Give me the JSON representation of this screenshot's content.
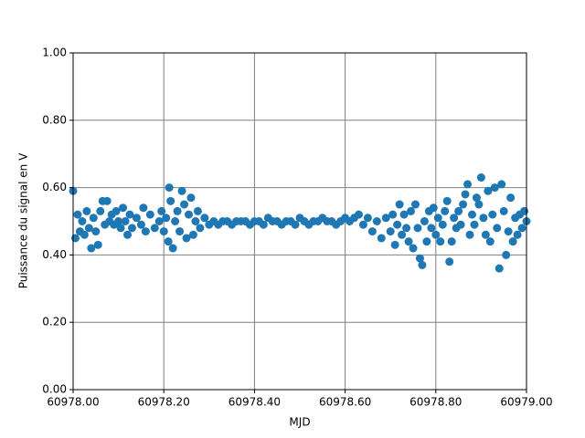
{
  "chart_data": {
    "type": "scatter",
    "xlabel": "MJD",
    "ylabel": "Puissance du signal en V",
    "color": "#1f77b4",
    "grid": true,
    "xlim": [
      60978.0,
      60979.0
    ],
    "xticks": [
      {
        "value": 60978.0,
        "label": "60978.00"
      },
      {
        "value": 60978.2,
        "label": "60978.20"
      },
      {
        "value": 60978.4,
        "label": "60978.40"
      },
      {
        "value": 60978.6,
        "label": "60978.60"
      },
      {
        "value": 60978.8,
        "label": "60978.80"
      },
      {
        "value": 60979.0,
        "label": "60979.00"
      }
    ],
    "ylim": [
      0,
      1
    ],
    "yticks": [
      {
        "value": 0,
        "label": "0.00"
      },
      {
        "value": 0.2,
        "label": "0.20"
      },
      {
        "value": 0.4,
        "label": "0.40"
      },
      {
        "value": 0.6,
        "label": "0.60"
      },
      {
        "value": 0.8,
        "label": "0.80"
      },
      {
        "value": 1,
        "label": "1.00"
      }
    ],
    "x": [
      60978.0,
      60978.005,
      60978.01,
      60978.015,
      60978.02,
      60978.025,
      60978.03,
      60978.035,
      60978.04,
      60978.045,
      60978.05,
      60978.055,
      60978.06,
      60978.065,
      60978.07,
      60978.075,
      60978.08,
      60978.085,
      60978.09,
      60978.095,
      60978.1,
      60978.105,
      60978.11,
      60978.115,
      60978.12,
      60978.125,
      60978.13,
      60978.14,
      60978.15,
      60978.155,
      60978.16,
      60978.17,
      60978.18,
      60978.19,
      60978.195,
      60978.2,
      60978.205,
      60978.21,
      60978.212,
      60978.215,
      60978.22,
      60978.225,
      60978.23,
      60978.235,
      60978.24,
      60978.245,
      60978.25,
      60978.255,
      60978.26,
      60978.265,
      60978.27,
      60978.275,
      60978.28,
      60978.29,
      60978.3,
      60978.31,
      60978.32,
      60978.33,
      60978.34,
      60978.35,
      60978.36,
      60978.37,
      60978.38,
      60978.39,
      60978.4,
      60978.41,
      60978.42,
      60978.43,
      60978.44,
      60978.45,
      60978.46,
      60978.47,
      60978.48,
      60978.49,
      60978.5,
      60978.51,
      60978.52,
      60978.53,
      60978.54,
      60978.55,
      60978.56,
      60978.57,
      60978.58,
      60978.59,
      60978.6,
      60978.61,
      60978.62,
      60978.63,
      60978.64,
      60978.65,
      60978.66,
      60978.67,
      60978.68,
      60978.69,
      60978.7,
      60978.705,
      60978.71,
      60978.715,
      60978.72,
      60978.725,
      60978.73,
      60978.735,
      60978.74,
      60978.745,
      60978.75,
      60978.755,
      60978.76,
      60978.765,
      60978.77,
      60978.775,
      60978.78,
      60978.785,
      60978.79,
      60978.795,
      60978.8,
      60978.805,
      60978.81,
      60978.815,
      60978.82,
      60978.825,
      60978.83,
      60978.835,
      60978.84,
      60978.845,
      60978.85,
      60978.855,
      60978.86,
      60978.865,
      60978.87,
      60978.875,
      60978.88,
      60978.885,
      60978.89,
      60978.895,
      60978.9,
      60978.905,
      60978.91,
      60978.915,
      60978.92,
      60978.925,
      60978.93,
      60978.935,
      60978.94,
      60978.945,
      60978.95,
      60978.955,
      60978.96,
      60978.965,
      60978.97,
      60978.975,
      60978.98,
      60978.985,
      60978.99,
      60978.995,
      60979.0
    ],
    "values": [
      0.59,
      0.45,
      0.52,
      0.47,
      0.5,
      0.46,
      0.53,
      0.48,
      0.42,
      0.51,
      0.47,
      0.43,
      0.53,
      0.56,
      0.49,
      0.56,
      0.5,
      0.52,
      0.49,
      0.53,
      0.5,
      0.48,
      0.54,
      0.5,
      0.46,
      0.52,
      0.48,
      0.51,
      0.49,
      0.54,
      0.47,
      0.52,
      0.48,
      0.5,
      0.53,
      0.47,
      0.51,
      0.44,
      0.6,
      0.56,
      0.42,
      0.5,
      0.53,
      0.47,
      0.59,
      0.55,
      0.45,
      0.52,
      0.57,
      0.46,
      0.5,
      0.53,
      0.48,
      0.51,
      0.49,
      0.5,
      0.49,
      0.5,
      0.5,
      0.49,
      0.5,
      0.5,
      0.5,
      0.49,
      0.5,
      0.5,
      0.49,
      0.51,
      0.5,
      0.5,
      0.49,
      0.5,
      0.5,
      0.49,
      0.51,
      0.5,
      0.49,
      0.5,
      0.5,
      0.51,
      0.5,
      0.5,
      0.49,
      0.5,
      0.51,
      0.5,
      0.51,
      0.52,
      0.49,
      0.51,
      0.47,
      0.5,
      0.45,
      0.51,
      0.47,
      0.52,
      0.43,
      0.49,
      0.55,
      0.46,
      0.52,
      0.48,
      0.44,
      0.53,
      0.42,
      0.55,
      0.48,
      0.39,
      0.37,
      0.5,
      0.44,
      0.53,
      0.48,
      0.54,
      0.46,
      0.51,
      0.44,
      0.49,
      0.53,
      0.56,
      0.38,
      0.44,
      0.51,
      0.48,
      0.53,
      0.49,
      0.55,
      0.58,
      0.61,
      0.46,
      0.52,
      0.49,
      0.57,
      0.55,
      0.63,
      0.51,
      0.46,
      0.59,
      0.44,
      0.52,
      0.6,
      0.48,
      0.36,
      0.61,
      0.53,
      0.4,
      0.47,
      0.57,
      0.44,
      0.51,
      0.46,
      0.52,
      0.48,
      0.53,
      0.5
    ]
  }
}
